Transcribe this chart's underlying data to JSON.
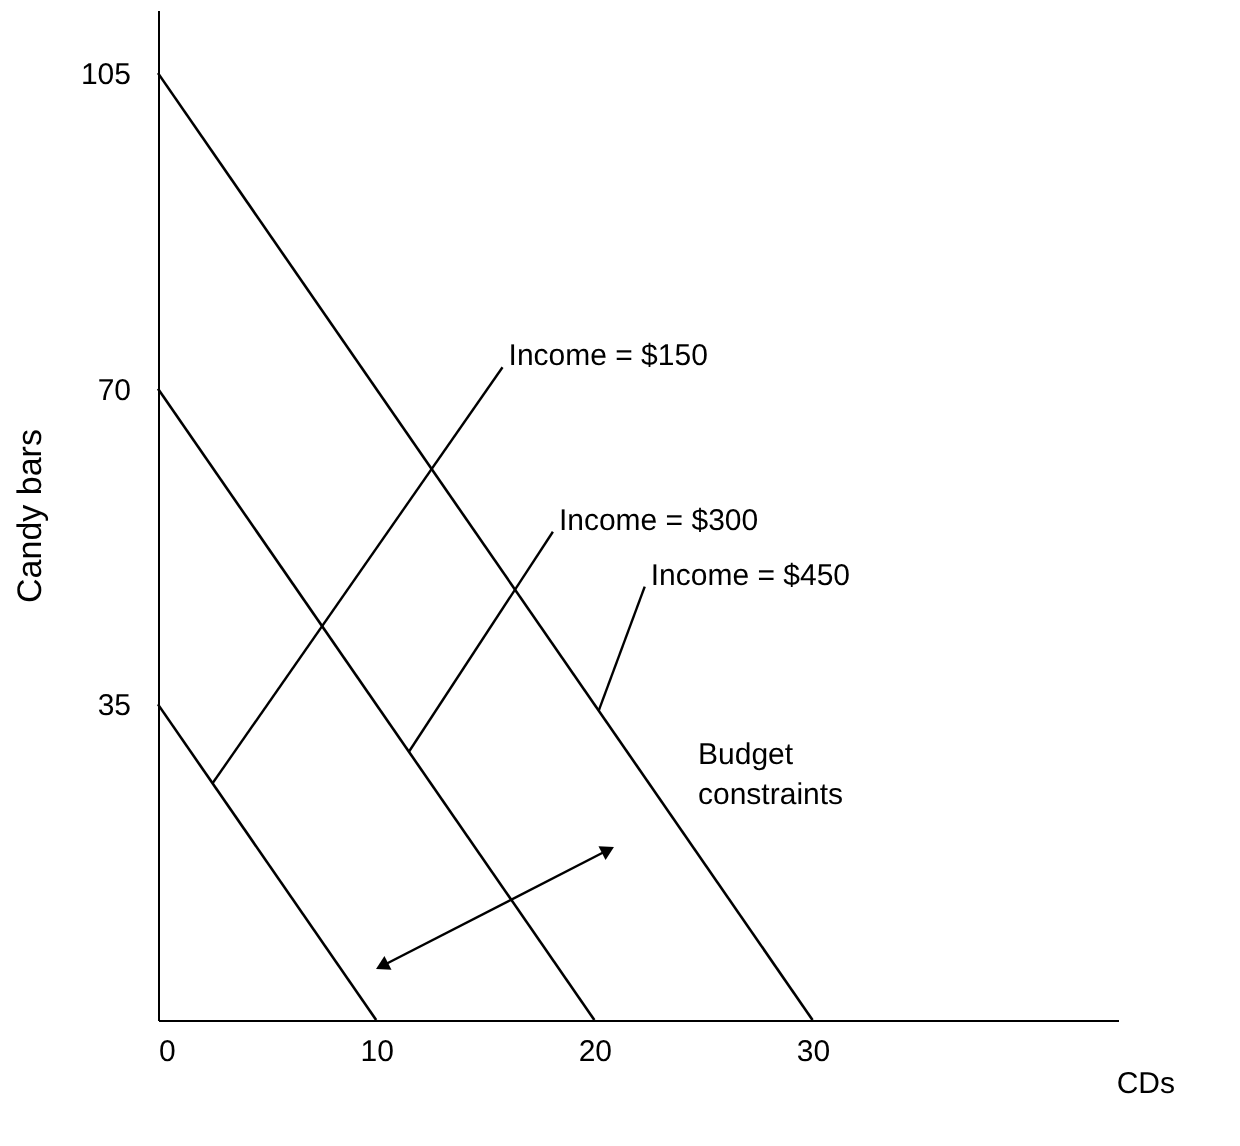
{
  "chart_data": {
    "type": "line",
    "xlabel": "CDs",
    "ylabel": "Candy bars",
    "series": [
      {
        "color": "#000000",
        "x": [
          0,
          10
        ],
        "values": [
          35,
          0
        ]
      },
      {
        "color": "#000000",
        "x": [
          0,
          20
        ],
        "values": [
          70,
          0
        ]
      },
      {
        "color": "#000000",
        "x": [
          0,
          30
        ],
        "values": [
          105,
          0
        ]
      }
    ],
    "xlim": [
      0,
      44
    ],
    "ylim": [
      0,
      112
    ],
    "xticks": [
      0,
      10,
      20,
      30
    ],
    "yticks": [
      35,
      70,
      105
    ],
    "annotations": [
      {
        "text": "Income = $150",
        "x": 2.5,
        "y": 26.25
      },
      {
        "text": "Income = $300",
        "x": 11.5,
        "y": 29.75
      },
      {
        "text": "Income = $450",
        "x": 20.2,
        "y": 34.3
      },
      "Budget constraints"
    ],
    "grid": false,
    "marker": "none",
    "line_style": "solid"
  }
}
